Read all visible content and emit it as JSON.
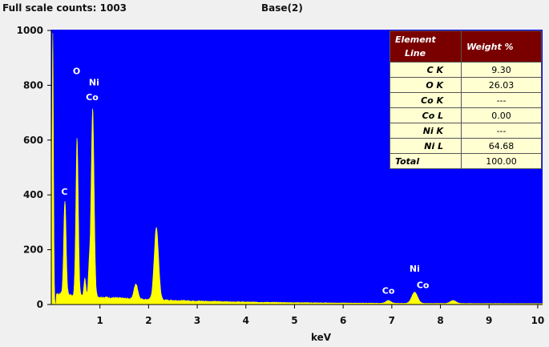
{
  "header": {
    "full_scale": "Full scale counts: 1003",
    "spectrum_name": "Base(2)"
  },
  "chart_data": {
    "type": "line",
    "xlabel": "keV",
    "ylabel": "",
    "xlim": [
      0,
      10.1
    ],
    "ylim": [
      0,
      1003
    ],
    "x_ticks": [
      "1",
      "2",
      "3",
      "4",
      "5",
      "6",
      "7",
      "8",
      "9",
      "10"
    ],
    "y_ticks": [
      "0",
      "200",
      "400",
      "600",
      "800",
      "1000"
    ],
    "background_color": "#0000ff",
    "series_color": "#ffff00",
    "peaks": [
      {
        "keV": 0.03,
        "counts": 1000
      },
      {
        "keV": 0.28,
        "counts": 380
      },
      {
        "keV": 0.53,
        "counts": 610
      },
      {
        "keV": 0.69,
        "counts": 95
      },
      {
        "keV": 0.78,
        "counts": 130
      },
      {
        "keV": 0.85,
        "counts": 715
      },
      {
        "keV": 1.74,
        "counts": 75
      },
      {
        "keV": 2.16,
        "counts": 280
      },
      {
        "keV": 6.93,
        "counts": 15
      },
      {
        "keV": 7.47,
        "counts": 45
      },
      {
        "keV": 8.26,
        "counts": 15
      }
    ],
    "peak_labels": [
      {
        "text": "C",
        "keV": 0.27,
        "counts": 400
      },
      {
        "text": "O",
        "keV": 0.52,
        "counts": 840
      },
      {
        "text": "Ni",
        "keV": 0.88,
        "counts": 800
      },
      {
        "text": "Co",
        "keV": 0.84,
        "counts": 745
      },
      {
        "text": "Co",
        "keV": 6.93,
        "counts": 40
      },
      {
        "text": "Ni",
        "keV": 7.47,
        "counts": 120
      },
      {
        "text": "Co",
        "keV": 7.64,
        "counts": 60
      }
    ]
  },
  "composition_table": {
    "headers": [
      "Element\nLine",
      "Weight %"
    ],
    "rows": [
      {
        "element": "C K",
        "weight": "9.30"
      },
      {
        "element": "O K",
        "weight": "26.03"
      },
      {
        "element": "Co K",
        "weight": "---"
      },
      {
        "element": "Co L",
        "weight": "0.00"
      },
      {
        "element": "Ni K",
        "weight": "---"
      },
      {
        "element": "Ni L",
        "weight": "64.68"
      },
      {
        "element": "Total",
        "weight": "100.00"
      }
    ]
  }
}
